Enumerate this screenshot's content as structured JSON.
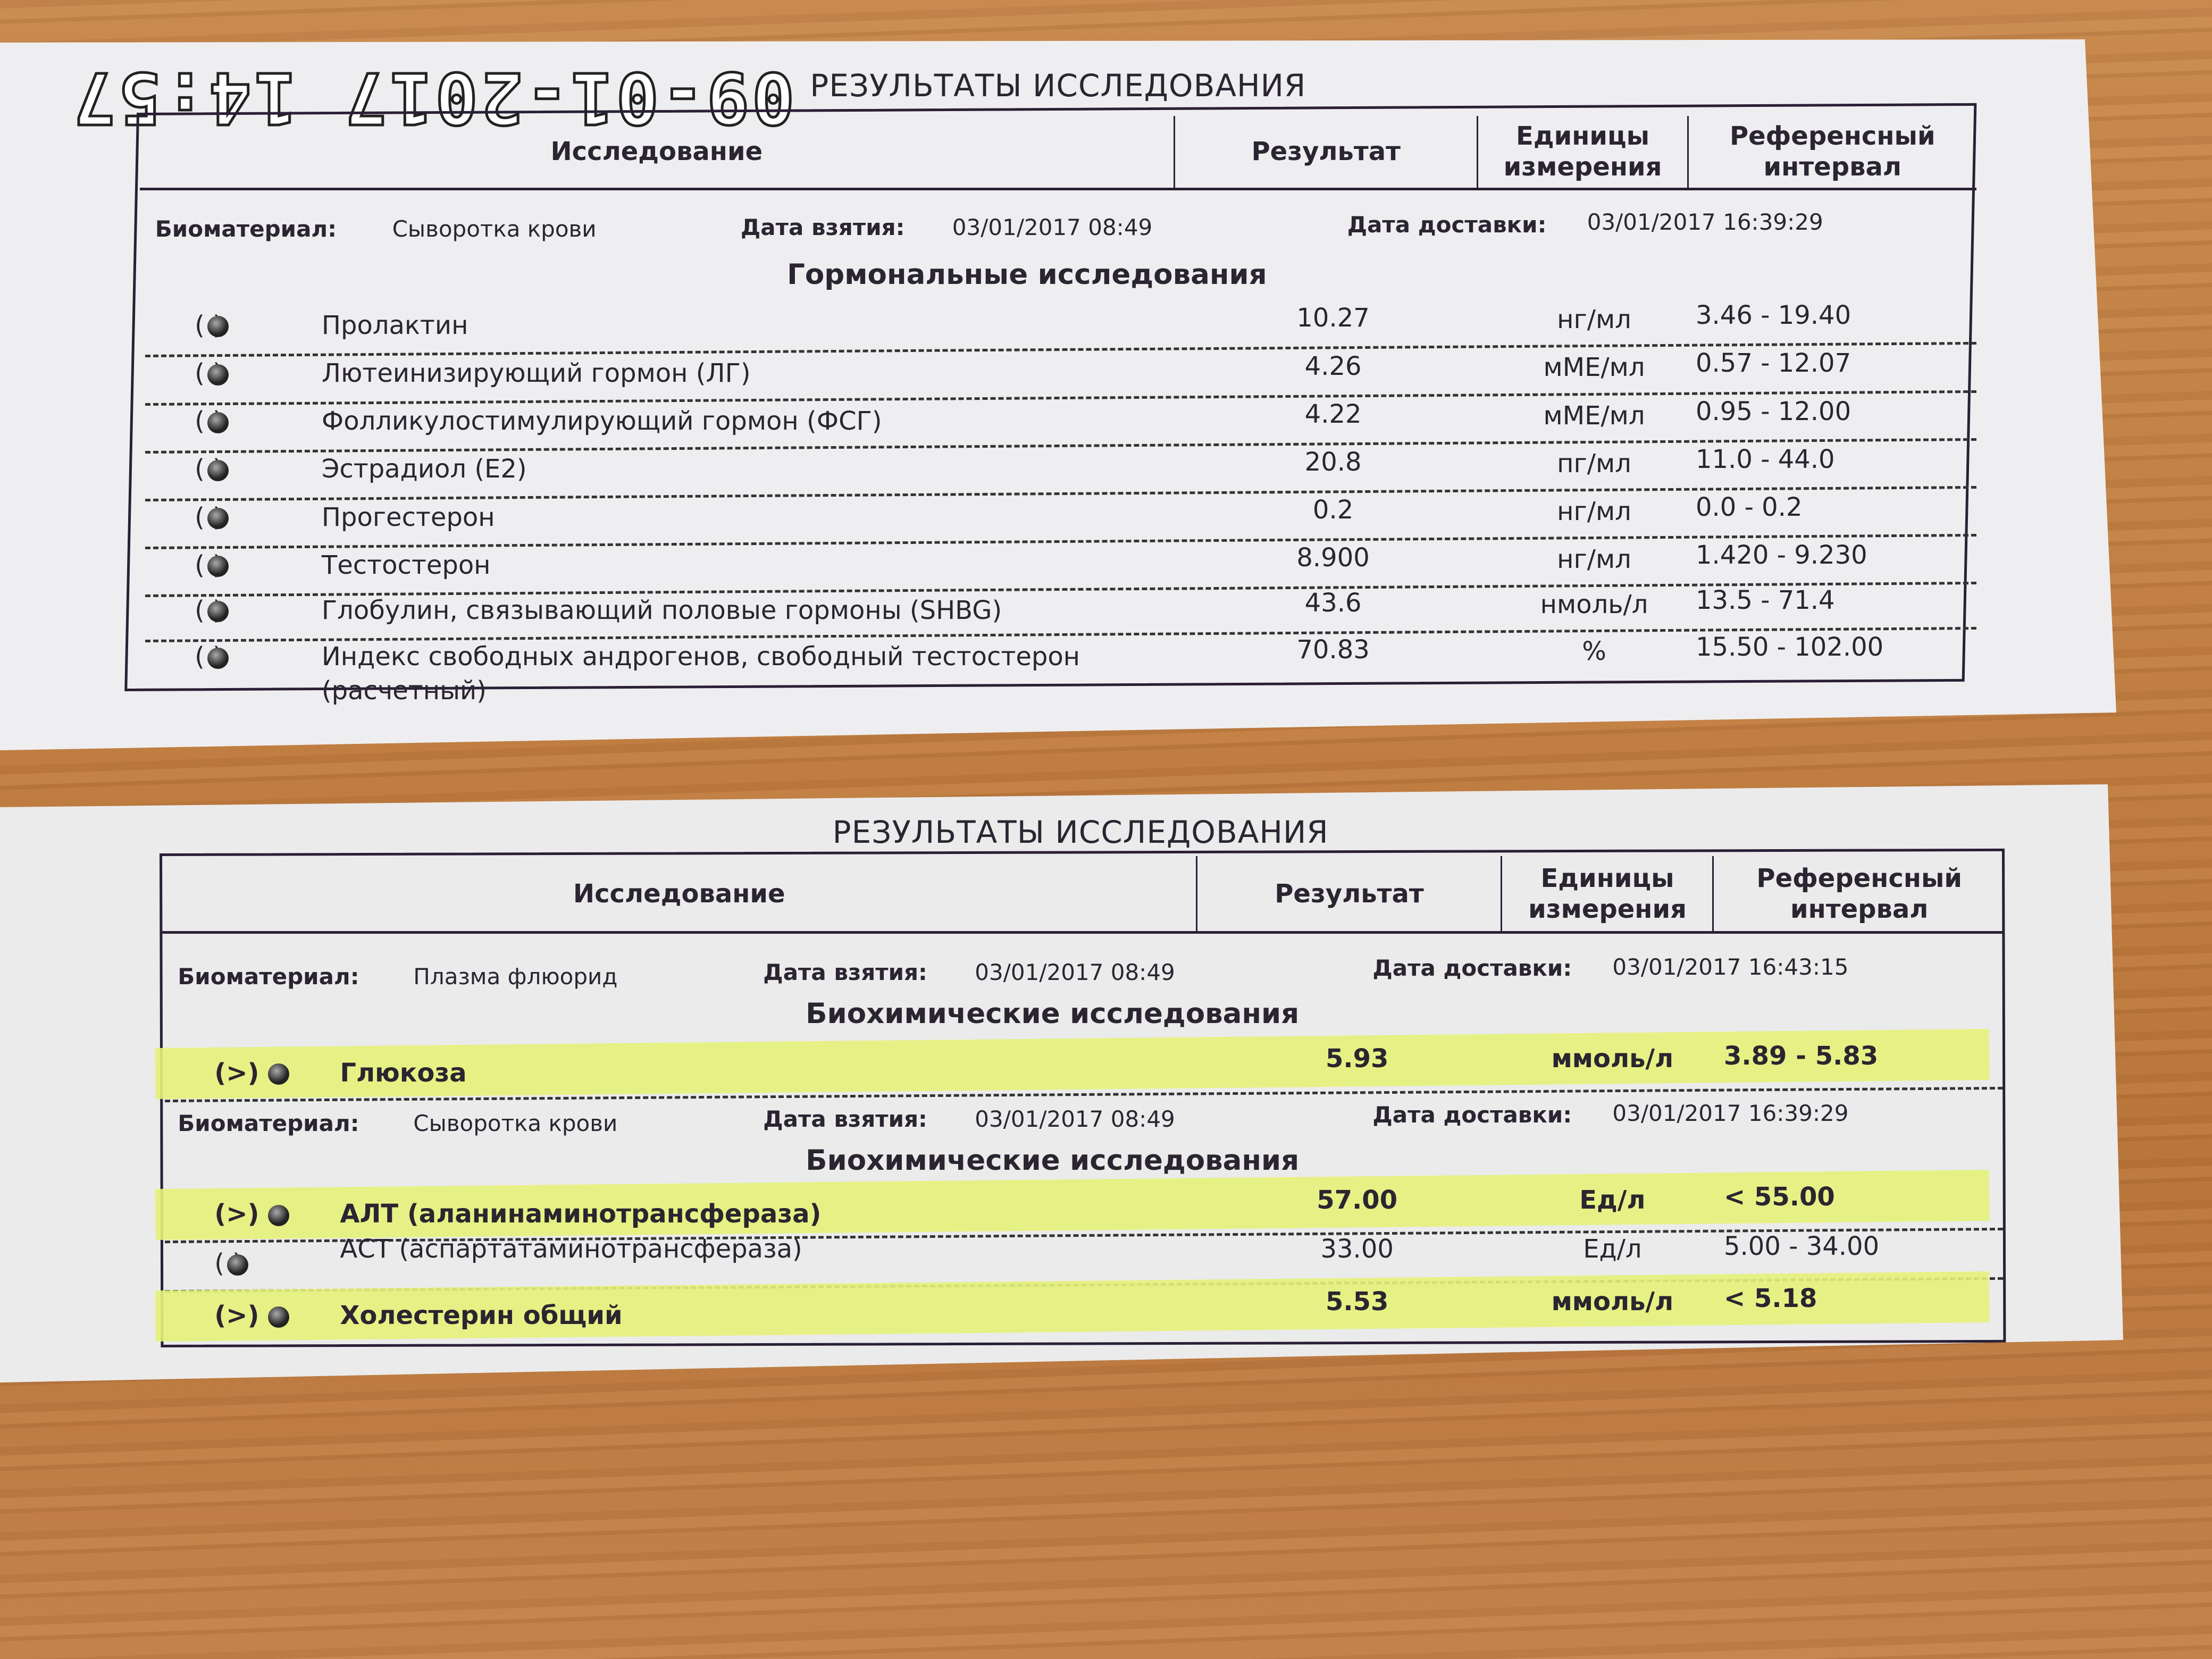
{
  "timestamp": "09-01-2017 14:57",
  "reports": [
    {
      "title": "РЕЗУЛЬТАТЫ ИССЛЕДОВАНИЯ",
      "columns": [
        "Исследование",
        "Результат",
        "Единицы измерения",
        "Референсный интервал"
      ],
      "blocks": [
        {
          "biomaterial_label": "Биоматериал:",
          "biomaterial": "Сыворотка крови",
          "taken_label": "Дата взятия:",
          "taken": "03/01/2017 08:49",
          "delivered_label": "Дата доставки:",
          "delivered": "03/01/2017 16:39:29",
          "section": "Гормональные исследования",
          "rows": [
            {
              "mark": "( )",
              "name": "Пролактин",
              "result": "10.27",
              "unit": "нг/мл",
              "ref": "3.46 - 19.40",
              "highlight": false
            },
            {
              "mark": "( )",
              "name": "Лютеинизирующий гормон (ЛГ)",
              "result": "4.26",
              "unit": "мМЕ/мл",
              "ref": "0.57 - 12.07",
              "highlight": false
            },
            {
              "mark": "( )",
              "name": "Фолликулостимулирующий гормон (ФСГ)",
              "result": "4.22",
              "unit": "мМЕ/мл",
              "ref": "0.95 - 12.00",
              "highlight": false
            },
            {
              "mark": "( )",
              "name": "Эстрадиол (Е2)",
              "result": "20.8",
              "unit": "пг/мл",
              "ref": "11.0 - 44.0",
              "highlight": false
            },
            {
              "mark": "( )",
              "name": "Прогестерон",
              "result": "0.2",
              "unit": "нг/мл",
              "ref": "0.0 - 0.2",
              "highlight": false
            },
            {
              "mark": "( )",
              "name": "Тестостерон",
              "result": "8.900",
              "unit": "нг/мл",
              "ref": "1.420 - 9.230",
              "highlight": false
            },
            {
              "mark": "( )",
              "name": "Глобулин, связывающий половые гормоны (SHBG)",
              "result": "43.6",
              "unit": "нмоль/л",
              "ref": "13.5 - 71.4",
              "highlight": false
            },
            {
              "mark": "( )",
              "name": "Индекс свободных андрогенов, свободный тестостерон",
              "name2": "(расчетный)",
              "result": "70.83",
              "unit": "%",
              "ref": "15.50 - 102.00",
              "highlight": false
            }
          ]
        }
      ]
    },
    {
      "title": "РЕЗУЛЬТАТЫ ИССЛЕДОВАНИЯ",
      "columns": [
        "Исследование",
        "Результат",
        "Единицы измерения",
        "Референсный интервал"
      ],
      "blocks": [
        {
          "biomaterial_label": "Биоматериал:",
          "biomaterial": "Плазма флюорид",
          "taken_label": "Дата взятия:",
          "taken": "03/01/2017 08:49",
          "delivered_label": "Дата доставки:",
          "delivered": "03/01/2017 16:43:15",
          "section": "Биохимические исследования",
          "rows": [
            {
              "mark": "(>)",
              "name": "Глюкоза",
              "result": "5.93",
              "unit": "ммоль/л",
              "ref": "3.89 - 5.83",
              "highlight": true
            }
          ]
        },
        {
          "biomaterial_label": "Биоматериал:",
          "biomaterial": "Сыворотка крови",
          "taken_label": "Дата взятия:",
          "taken": "03/01/2017 08:49",
          "delivered_label": "Дата доставки:",
          "delivered": "03/01/2017 16:39:29",
          "section": "Биохимические исследования",
          "rows": [
            {
              "mark": "(>)",
              "name": "АЛТ (аланинаминотрансфераза)",
              "result": "57.00",
              "unit": "Ед/л",
              "ref": "< 55.00",
              "highlight": true
            },
            {
              "mark": "( )",
              "name": "АСТ (аспартатаминотрансфераза)",
              "result": "33.00",
              "unit": "Ед/л",
              "ref": "5.00 - 34.00",
              "highlight": false
            },
            {
              "mark": "(>)",
              "name": "Холестерин общий",
              "result": "5.53",
              "unit": "ммоль/л",
              "ref": "< 5.18",
              "highlight": true
            }
          ]
        }
      ],
      "highlight_color": "#e6f27a"
    }
  ]
}
